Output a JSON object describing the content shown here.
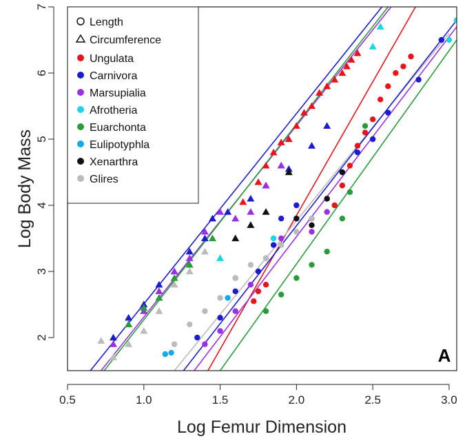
{
  "chart_data": {
    "type": "scatter",
    "xlabel": "Log Femur Dimension",
    "ylabel": "Log Body Mass",
    "panel_label": "A",
    "xlim": [
      0.5,
      3.05
    ],
    "ylim": [
      1.5,
      7.0
    ],
    "x_ticks": [
      0.5,
      1.0,
      1.5,
      2.0,
      2.5,
      3.0
    ],
    "x_tick_labels": [
      "0.5",
      "1.0",
      "1.5",
      "2.0",
      "2.5",
      "3.0"
    ],
    "y_ticks": [
      2,
      3,
      4,
      5,
      6,
      7
    ],
    "y_tick_labels": [
      "2",
      "3",
      "4",
      "5",
      "6",
      "7"
    ],
    "grid": false,
    "legend_position": "top-left",
    "marker_legend": [
      {
        "label": "Length",
        "marker": "circle-open"
      },
      {
        "label": "Circumference",
        "marker": "triangle-open"
      }
    ],
    "series": [
      {
        "name": "Ungulata",
        "color": "#e8141c",
        "circumference": [
          [
            1.65,
            4.05
          ],
          [
            1.75,
            4.35
          ],
          [
            1.8,
            4.6
          ],
          [
            1.85,
            4.8
          ],
          [
            1.9,
            4.95
          ],
          [
            1.95,
            5.0
          ],
          [
            2.0,
            5.2
          ],
          [
            2.05,
            5.4
          ],
          [
            2.1,
            5.5
          ],
          [
            2.15,
            5.7
          ],
          [
            2.2,
            5.8
          ],
          [
            2.25,
            5.9
          ],
          [
            2.3,
            6.0
          ],
          [
            2.33,
            6.1
          ],
          [
            2.36,
            6.2
          ],
          [
            2.4,
            6.3
          ]
        ],
        "length": [
          [
            1.72,
            2.55
          ],
          [
            1.75,
            2.7
          ],
          [
            1.8,
            2.8
          ],
          [
            2.25,
            4.0
          ],
          [
            2.3,
            4.3
          ],
          [
            2.35,
            4.6
          ],
          [
            2.4,
            4.9
          ],
          [
            2.45,
            5.1
          ],
          [
            2.5,
            5.3
          ],
          [
            2.55,
            5.6
          ],
          [
            2.6,
            5.8
          ],
          [
            2.65,
            6.0
          ],
          [
            2.7,
            6.1
          ],
          [
            2.75,
            6.25
          ]
        ],
        "line": [
          [
            1.42,
            1.5
          ],
          [
            2.78,
            7.0
          ]
        ]
      },
      {
        "name": "Carnivora",
        "color": "#1c1ccf",
        "circumference": [
          [
            0.8,
            2.0
          ],
          [
            0.9,
            2.3
          ],
          [
            1.0,
            2.5
          ],
          [
            1.1,
            2.8
          ],
          [
            1.2,
            3.0
          ],
          [
            1.3,
            3.3
          ],
          [
            1.4,
            3.5
          ],
          [
            1.45,
            3.8
          ],
          [
            1.55,
            3.9
          ],
          [
            1.7,
            4.1
          ],
          [
            1.8,
            4.3
          ],
          [
            1.9,
            4.6
          ],
          [
            1.95,
            4.55
          ],
          [
            2.1,
            4.9
          ],
          [
            2.2,
            5.2
          ]
        ],
        "length": [
          [
            1.35,
            2.0
          ],
          [
            1.5,
            2.3
          ],
          [
            1.6,
            2.7
          ],
          [
            1.75,
            3.0
          ],
          [
            1.85,
            3.4
          ],
          [
            1.9,
            3.8
          ],
          [
            2.0,
            4.0
          ],
          [
            2.1,
            3.8
          ],
          [
            2.2,
            4.1
          ],
          [
            2.3,
            4.5
          ],
          [
            2.4,
            4.8
          ],
          [
            2.5,
            5.0
          ],
          [
            2.6,
            5.4
          ],
          [
            2.8,
            5.9
          ],
          [
            2.95,
            6.5
          ]
        ],
        "line": [
          [
            0.65,
            1.5
          ],
          [
            2.56,
            7.0
          ]
        ]
      },
      {
        "name": "Marsupialia",
        "color": "#9b30e0",
        "circumference": [
          [
            0.8,
            1.9
          ],
          [
            0.9,
            2.2
          ],
          [
            1.0,
            2.4
          ],
          [
            1.1,
            2.7
          ],
          [
            1.2,
            3.0
          ],
          [
            1.3,
            3.2
          ],
          [
            1.4,
            3.6
          ],
          [
            1.5,
            3.9
          ],
          [
            1.6,
            3.8
          ],
          [
            1.7,
            3.9
          ],
          [
            1.8,
            4.3
          ],
          [
            1.9,
            4.6
          ]
        ],
        "length": [
          [
            1.4,
            1.9
          ],
          [
            1.5,
            2.1
          ],
          [
            1.6,
            2.4
          ],
          [
            1.7,
            2.8
          ],
          [
            1.8,
            3.2
          ],
          [
            1.9,
            3.5
          ],
          [
            2.0,
            3.8
          ],
          [
            2.1,
            3.6
          ],
          [
            2.2,
            3.9
          ]
        ],
        "line": [
          [
            0.72,
            1.5
          ],
          [
            2.62,
            7.0
          ]
        ]
      },
      {
        "name": "Afrotheria",
        "color": "#19d6e6",
        "circumference": [
          [
            1.5,
            3.2
          ],
          [
            2.5,
            6.4
          ],
          [
            2.55,
            6.7
          ]
        ],
        "length": [
          [
            1.85,
            3.5
          ],
          [
            3.0,
            6.5
          ],
          [
            3.05,
            6.8
          ]
        ],
        "line": []
      },
      {
        "name": "Euarchonta",
        "color": "#2a9a3a",
        "circumference": [
          [
            0.9,
            2.2
          ],
          [
            1.0,
            2.45
          ],
          [
            1.1,
            2.6
          ],
          [
            1.2,
            2.9
          ],
          [
            1.3,
            3.1
          ],
          [
            1.45,
            3.5
          ]
        ],
        "length": [
          [
            1.8,
            2.4
          ],
          [
            1.9,
            2.65
          ],
          [
            2.0,
            2.9
          ],
          [
            2.1,
            3.1
          ],
          [
            2.2,
            3.3
          ],
          [
            2.3,
            3.8
          ],
          [
            2.35,
            4.2
          ],
          [
            2.45,
            5.2
          ]
        ],
        "line": [
          [
            1.5,
            1.5
          ],
          [
            3.05,
            6.5
          ]
        ]
      },
      {
        "name": "Eulipotyphla",
        "color": "#16a8e8",
        "circumference": [],
        "length": [
          [
            1.14,
            1.75
          ],
          [
            1.18,
            1.77
          ],
          [
            1.55,
            2.6
          ],
          [
            1.6,
            2.9
          ]
        ],
        "line": []
      },
      {
        "name": "Xenarthra",
        "color": "#111111",
        "circumference": [
          [
            1.6,
            3.5
          ],
          [
            1.7,
            3.7
          ],
          [
            1.8,
            3.9
          ],
          [
            1.95,
            4.5
          ]
        ],
        "length": [
          [
            2.0,
            3.8
          ],
          [
            2.1,
            3.7
          ],
          [
            2.2,
            4.1
          ],
          [
            2.3,
            4.5
          ]
        ],
        "line": []
      },
      {
        "name": "Glires",
        "color": "#bbbbbb",
        "circumference": [
          [
            0.72,
            1.95
          ],
          [
            0.8,
            1.7
          ],
          [
            0.9,
            1.9
          ],
          [
            1.0,
            2.1
          ],
          [
            1.1,
            2.4
          ],
          [
            1.2,
            2.8
          ],
          [
            1.3,
            3.0
          ],
          [
            1.4,
            3.3
          ]
        ],
        "length": [
          [
            1.2,
            1.9
          ],
          [
            1.3,
            2.2
          ],
          [
            1.4,
            2.4
          ],
          [
            1.5,
            2.6
          ],
          [
            1.6,
            2.9
          ],
          [
            1.7,
            3.1
          ],
          [
            1.8,
            3.2
          ],
          [
            1.9,
            3.4
          ],
          [
            2.0,
            3.6
          ],
          [
            2.1,
            3.8
          ]
        ],
        "line": [
          [
            1.2,
            1.5
          ],
          [
            3.0,
            6.6
          ]
        ]
      }
    ],
    "extra_lines": [
      {
        "color": "#9b30e0",
        "points": [
          [
            1.33,
            1.5
          ],
          [
            3.05,
            6.7
          ]
        ]
      },
      {
        "color": "#1c1ccf",
        "points": [
          [
            1.26,
            1.5
          ],
          [
            3.05,
            6.8
          ]
        ]
      },
      {
        "color": "#2a9a3a",
        "points": [
          [
            0.74,
            1.5
          ],
          [
            2.6,
            7.0
          ]
        ]
      }
    ]
  }
}
